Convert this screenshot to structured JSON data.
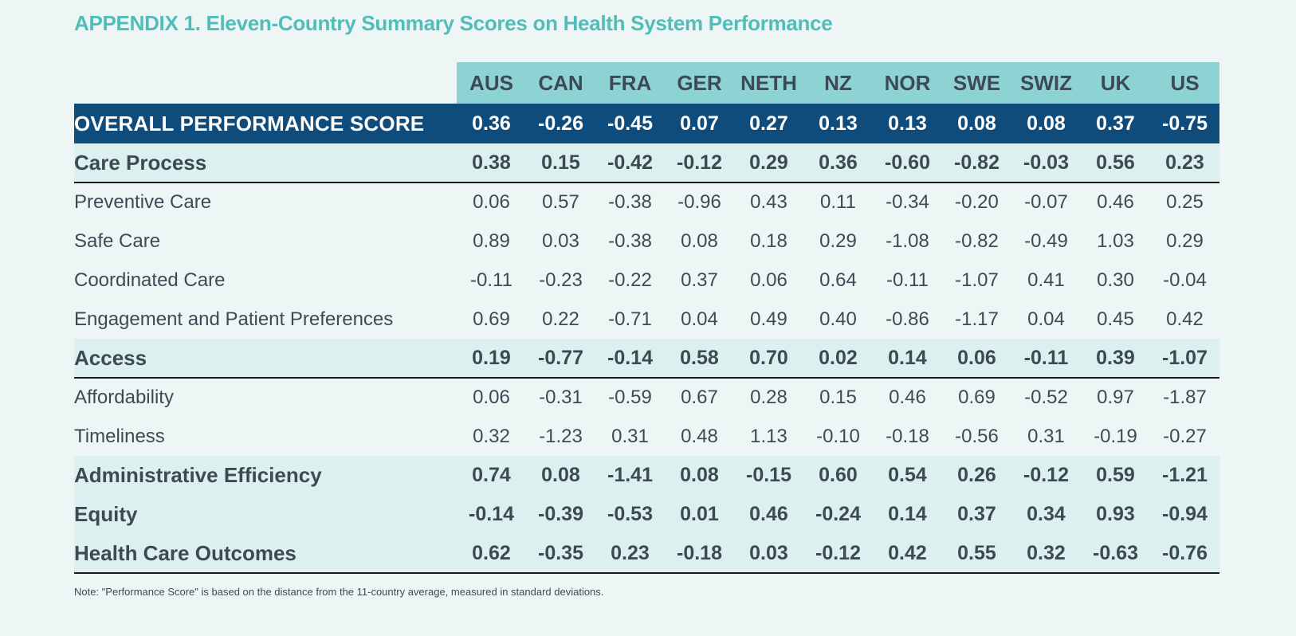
{
  "title": "APPENDIX 1. Eleven-Country Summary Scores on Health System Performance",
  "columns": [
    "AUS",
    "CAN",
    "FRA",
    "GER",
    "NETH",
    "NZ",
    "NOR",
    "SWE",
    "SWIZ",
    "UK",
    "US"
  ],
  "overall": {
    "label": "OVERALL PERFORMANCE SCORE",
    "values": [
      "0.36",
      "-0.26",
      "-0.45",
      "0.07",
      "0.27",
      "0.13",
      "0.13",
      "0.08",
      "0.08",
      "0.37",
      "-0.75"
    ]
  },
  "care_process": {
    "label": "Care Process",
    "values": [
      "0.38",
      "0.15",
      "-0.42",
      "-0.12",
      "0.29",
      "0.36",
      "-0.60",
      "-0.82",
      "-0.03",
      "0.56",
      "0.23"
    ],
    "subrows": [
      {
        "label": "Preventive Care",
        "values": [
          "0.06",
          "0.57",
          "-0.38",
          "-0.96",
          "0.43",
          "0.11",
          "-0.34",
          "-0.20",
          "-0.07",
          "0.46",
          "0.25"
        ]
      },
      {
        "label": "Safe Care",
        "values": [
          "0.89",
          "0.03",
          "-0.38",
          "0.08",
          "0.18",
          "0.29",
          "-1.08",
          "-0.82",
          "-0.49",
          "1.03",
          "0.29"
        ]
      },
      {
        "label": "Coordinated Care",
        "values": [
          "-0.11",
          "-0.23",
          "-0.22",
          "0.37",
          "0.06",
          "0.64",
          "-0.11",
          "-1.07",
          "0.41",
          "0.30",
          "-0.04"
        ]
      },
      {
        "label": "Engagement and Patient Preferences",
        "values": [
          "0.69",
          "0.22",
          "-0.71",
          "0.04",
          "0.49",
          "0.40",
          "-0.86",
          "-1.17",
          "0.04",
          "0.45",
          "0.42"
        ]
      }
    ]
  },
  "access": {
    "label": "Access",
    "values": [
      "0.19",
      "-0.77",
      "-0.14",
      "0.58",
      "0.70",
      "0.02",
      "0.14",
      "0.06",
      "-0.11",
      "0.39",
      "-1.07"
    ],
    "subrows": [
      {
        "label": "Affordability",
        "values": [
          "0.06",
          "-0.31",
          "-0.59",
          "0.67",
          "0.28",
          "0.15",
          "0.46",
          "0.69",
          "-0.52",
          "0.97",
          "-1.87"
        ]
      },
      {
        "label": "Timeliness",
        "values": [
          "0.32",
          "-1.23",
          "0.31",
          "0.48",
          "1.13",
          "-0.10",
          "-0.18",
          "-0.56",
          "0.31",
          "-0.19",
          "-0.27"
        ]
      }
    ]
  },
  "admin": {
    "label": "Administrative Efficiency",
    "values": [
      "0.74",
      "0.08",
      "-1.41",
      "0.08",
      "-0.15",
      "0.60",
      "0.54",
      "0.26",
      "-0.12",
      "0.59",
      "-1.21"
    ]
  },
  "equity": {
    "label": "Equity",
    "values": [
      "-0.14",
      "-0.39",
      "-0.53",
      "0.01",
      "0.46",
      "-0.24",
      "0.14",
      "0.37",
      "0.34",
      "0.93",
      "-0.94"
    ]
  },
  "outcomes": {
    "label": "Health Care Outcomes",
    "values": [
      "0.62",
      "-0.35",
      "0.23",
      "-0.18",
      "0.03",
      "-0.12",
      "0.42",
      "0.55",
      "0.32",
      "-0.63",
      "-0.76"
    ]
  },
  "note": "Note: \"Performance Score\" is based on the distance from the 11-country average, measured in standard deviations."
}
